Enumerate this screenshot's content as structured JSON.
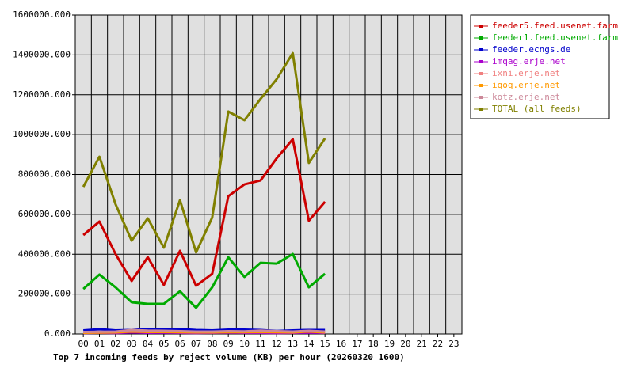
{
  "chart_data": {
    "type": "line",
    "title": "Top 7 incoming feeds by reject volume (KB) per hour (20260320 1600)",
    "categories": [
      "00",
      "01",
      "02",
      "03",
      "04",
      "05",
      "06",
      "07",
      "08",
      "09",
      "10",
      "11",
      "12",
      "13",
      "14",
      "15",
      "16",
      "17",
      "18",
      "19",
      "20",
      "21",
      "22",
      "23"
    ],
    "ylim": [
      0,
      1600000
    ],
    "yticks": [
      {
        "value": 0,
        "label": "0.000"
      },
      {
        "value": 200000,
        "label": "200000.000"
      },
      {
        "value": 400000,
        "label": "400000.000"
      },
      {
        "value": 600000,
        "label": "600000.000"
      },
      {
        "value": 800000,
        "label": "800000.000"
      },
      {
        "value": 1000000,
        "label": "1000000.000"
      },
      {
        "value": 1200000,
        "label": "1200000.000"
      },
      {
        "value": 1400000,
        "label": "1400000.000"
      },
      {
        "value": 1600000,
        "label": "1600000.000"
      }
    ],
    "grid": true,
    "legend": "right",
    "series": [
      {
        "name": "feeder5.feed.usenet.farm",
        "color": "#cc0000",
        "values": [
          496000,
          564000,
          401000,
          266000,
          385000,
          246000,
          417000,
          242000,
          302000,
          691000,
          750000,
          770000,
          881000,
          977000,
          568000,
          663000,
          null,
          null,
          null,
          null,
          null,
          null,
          null,
          null
        ]
      },
      {
        "name": "feeder1.feed.usenet.farm",
        "color": "#00aa00",
        "values": [
          226000,
          298000,
          234000,
          159000,
          151000,
          151000,
          214000,
          131000,
          234000,
          385000,
          286000,
          357000,
          353000,
          401000,
          234000,
          302000,
          null,
          null,
          null,
          null,
          null,
          null,
          null,
          null
        ]
      },
      {
        "name": "feeder.ecngs.de",
        "color": "#0000cc",
        "values": [
          18000,
          24000,
          18000,
          20000,
          25000,
          22000,
          25000,
          20000,
          18000,
          22000,
          22000,
          20000,
          15000,
          18000,
          20000,
          20000,
          null,
          null,
          null,
          null,
          null,
          null,
          null,
          null
        ]
      },
      {
        "name": "imqag.erje.net",
        "color": "#aa00cc",
        "values": [
          5000,
          6000,
          5000,
          8000,
          6000,
          7000,
          6000,
          5000,
          6000,
          7000,
          6000,
          6000,
          5000,
          6000,
          7000,
          6000,
          null,
          null,
          null,
          null,
          null,
          null,
          null,
          null
        ]
      },
      {
        "name": "ixni.erje.net",
        "color": "#f08080",
        "values": [
          8000,
          9000,
          10000,
          18000,
          15000,
          14000,
          12000,
          10000,
          10000,
          12000,
          11000,
          15000,
          12000,
          10000,
          14000,
          10000,
          null,
          null,
          null,
          null,
          null,
          null,
          null,
          null
        ]
      },
      {
        "name": "iqoq.erje.net",
        "color": "#ff9900",
        "values": [
          6000,
          7000,
          8000,
          12000,
          10000,
          10000,
          9000,
          8000,
          8000,
          9000,
          9000,
          10000,
          9000,
          8000,
          12000,
          8000,
          null,
          null,
          null,
          null,
          null,
          null,
          null,
          null
        ]
      },
      {
        "name": "kotz.erje.net",
        "color": "#cc8899",
        "values": [
          10000,
          11000,
          12000,
          20000,
          17000,
          16000,
          14000,
          12000,
          12000,
          14000,
          13000,
          17000,
          14000,
          12000,
          16000,
          12000,
          null,
          null,
          null,
          null,
          null,
          null,
          null,
          null
        ]
      },
      {
        "name": "TOTAL (all feeds)",
        "color": "#808000",
        "values": [
          738000,
          889000,
          651000,
          468000,
          580000,
          433000,
          671000,
          409000,
          584000,
          1116000,
          1072000,
          1179000,
          1278000,
          1409000,
          858000,
          981000,
          null,
          null,
          null,
          null,
          null,
          null,
          null,
          null
        ]
      }
    ]
  }
}
